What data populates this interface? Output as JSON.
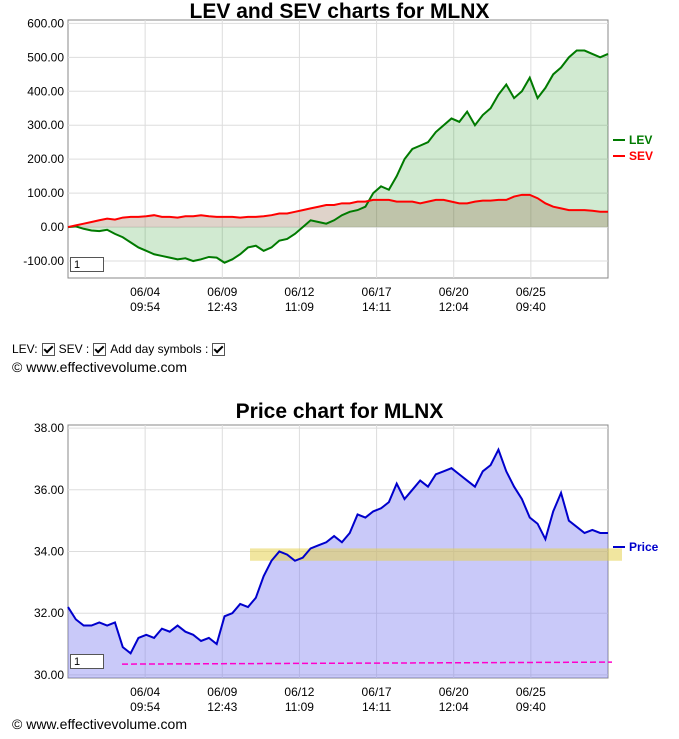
{
  "charts": {
    "lev": {
      "title": "LEV and SEV charts for MLNX",
      "legend": [
        {
          "name": "LEV",
          "color": "#007a00"
        },
        {
          "name": "SEV",
          "color": "#ff0000"
        }
      ],
      "yticks": [
        "600.00",
        "500.00",
        "400.00",
        "300.00",
        "200.00",
        "100.00",
        "0.00",
        "-100.00"
      ],
      "ylim": [
        -150,
        610
      ],
      "xticks": [
        {
          "date": "06/04",
          "time": "09:54"
        },
        {
          "date": "06/09",
          "time": "12:43"
        },
        {
          "date": "06/12",
          "time": "11:09"
        },
        {
          "date": "06/17",
          "time": "14:11"
        },
        {
          "date": "06/20",
          "time": "12:04"
        },
        {
          "date": "06/25",
          "time": "09:40"
        }
      ],
      "input_value": "1"
    },
    "price": {
      "title": "Price chart for MLNX",
      "legend": [
        {
          "name": "Price",
          "color": "#0000cc"
        }
      ],
      "yticks": [
        "38.00",
        "36.00",
        "34.00",
        "32.00",
        "30.00"
      ],
      "ylim": [
        29.9,
        38.1
      ],
      "xticks": [
        {
          "date": "06/04",
          "time": "09:54"
        },
        {
          "date": "06/09",
          "time": "12:43"
        },
        {
          "date": "06/12",
          "time": "11:09"
        },
        {
          "date": "06/17",
          "time": "14:11"
        },
        {
          "date": "06/20",
          "time": "12:04"
        },
        {
          "date": "06/25",
          "time": "09:40"
        }
      ],
      "input_value": "1",
      "support_band": [
        33.7,
        34.1
      ],
      "baseline": 30.35
    }
  },
  "controls": {
    "lev_label": "LEV:",
    "sev_label": "SEV :",
    "day_symbols_label": "Add day symbols :"
  },
  "copyright": "© www.effectivevolume.com",
  "chart_data": [
    {
      "type": "line",
      "title": "LEV and SEV charts for MLNX",
      "x": [
        0,
        1,
        2,
        3,
        4,
        5,
        6,
        7,
        8,
        9,
        10,
        11,
        12,
        13,
        14,
        15,
        16,
        17,
        18,
        19,
        20,
        21,
        22,
        23,
        24,
        25,
        26,
        27,
        28,
        29,
        30,
        31,
        32,
        33,
        34,
        35,
        36,
        37,
        38,
        39,
        40,
        41,
        42,
        43,
        44,
        45,
        46,
        47,
        48,
        49,
        50,
        51,
        52,
        53,
        54,
        55,
        56,
        57,
        58,
        59,
        60,
        61,
        62,
        63,
        64,
        65,
        66,
        67,
        68,
        69
      ],
      "series": [
        {
          "name": "LEV",
          "color": "#007a00",
          "values": [
            0,
            2,
            -5,
            -10,
            -12,
            -8,
            -20,
            -30,
            -45,
            -60,
            -70,
            -80,
            -85,
            -90,
            -95,
            -92,
            -100,
            -95,
            -88,
            -90,
            -105,
            -95,
            -80,
            -60,
            -55,
            -70,
            -60,
            -40,
            -35,
            -20,
            0,
            20,
            15,
            10,
            20,
            35,
            45,
            50,
            60,
            100,
            120,
            110,
            150,
            200,
            230,
            240,
            250,
            280,
            300,
            320,
            310,
            340,
            300,
            330,
            350,
            390,
            420,
            380,
            400,
            440,
            380,
            410,
            450,
            470,
            500,
            520,
            520,
            510,
            500,
            510
          ]
        },
        {
          "name": "SEV",
          "color": "#ff0000",
          "values": [
            0,
            5,
            10,
            15,
            20,
            25,
            22,
            28,
            30,
            30,
            32,
            35,
            30,
            30,
            28,
            32,
            32,
            35,
            32,
            30,
            30,
            30,
            28,
            30,
            30,
            32,
            35,
            40,
            40,
            45,
            50,
            55,
            60,
            65,
            65,
            70,
            70,
            75,
            75,
            80,
            80,
            80,
            75,
            75,
            75,
            70,
            75,
            80,
            80,
            75,
            70,
            70,
            75,
            78,
            78,
            80,
            80,
            90,
            95,
            95,
            85,
            70,
            60,
            55,
            50,
            50,
            50,
            48,
            45,
            45
          ]
        }
      ]
    },
    {
      "type": "area",
      "title": "Price chart for MLNX",
      "x": [
        0,
        1,
        2,
        3,
        4,
        5,
        6,
        7,
        8,
        9,
        10,
        11,
        12,
        13,
        14,
        15,
        16,
        17,
        18,
        19,
        20,
        21,
        22,
        23,
        24,
        25,
        26,
        27,
        28,
        29,
        30,
        31,
        32,
        33,
        34,
        35,
        36,
        37,
        38,
        39,
        40,
        41,
        42,
        43,
        44,
        45,
        46,
        47,
        48,
        49,
        50,
        51,
        52,
        53,
        54,
        55,
        56,
        57,
        58,
        59,
        60,
        61,
        62,
        63,
        64,
        65,
        66,
        67,
        68,
        69
      ],
      "series": [
        {
          "name": "Price",
          "color": "#0000cc",
          "values": [
            32.2,
            31.8,
            31.6,
            31.6,
            31.7,
            31.6,
            31.7,
            30.9,
            30.7,
            31.2,
            31.3,
            31.2,
            31.5,
            31.4,
            31.6,
            31.4,
            31.3,
            31.1,
            31.2,
            31.0,
            31.9,
            32.0,
            32.3,
            32.2,
            32.5,
            33.2,
            33.7,
            34.0,
            33.9,
            33.7,
            33.8,
            34.1,
            34.2,
            34.3,
            34.5,
            34.3,
            34.6,
            35.2,
            35.1,
            35.3,
            35.4,
            35.6,
            36.2,
            35.7,
            36.0,
            36.3,
            36.1,
            36.5,
            36.6,
            36.7,
            36.5,
            36.3,
            36.1,
            36.6,
            36.8,
            37.3,
            36.6,
            36.1,
            35.7,
            35.1,
            34.9,
            34.4,
            35.3,
            35.9,
            35.0,
            34.8,
            34.6,
            34.7,
            34.6,
            34.6
          ]
        }
      ]
    }
  ]
}
